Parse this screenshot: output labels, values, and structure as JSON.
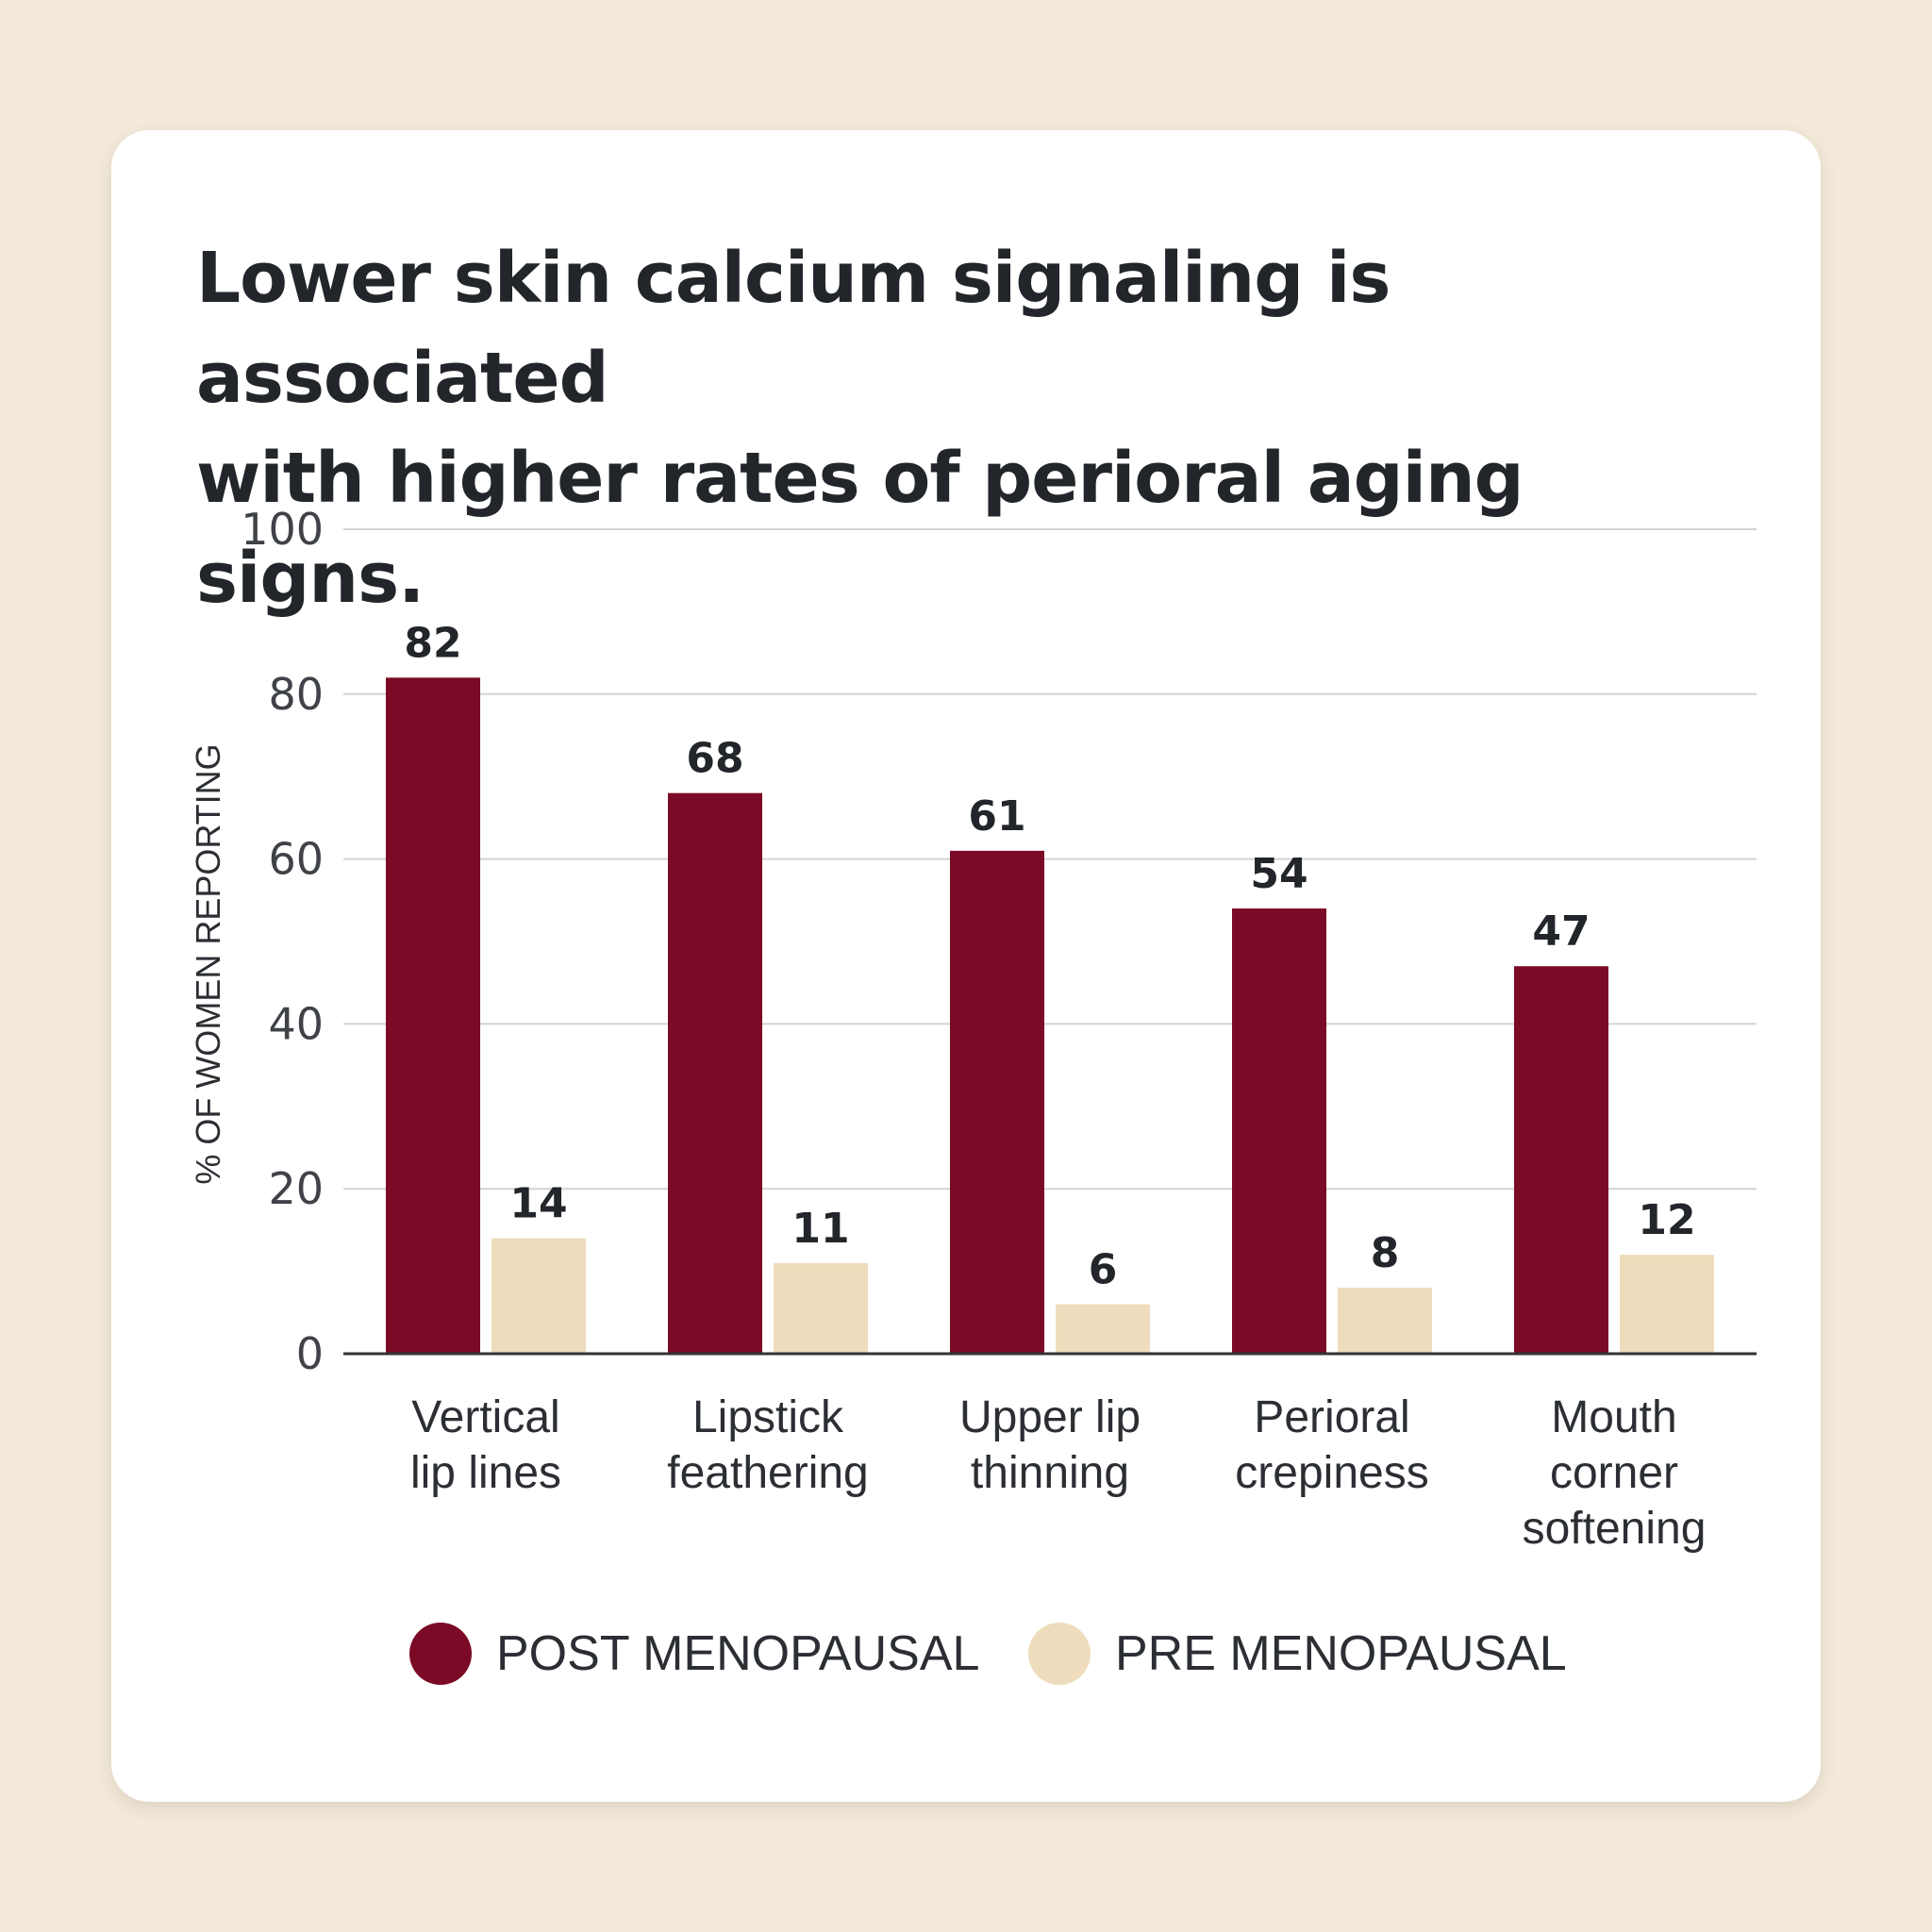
{
  "title": "Lower skin calcium signaling is associated\nwith higher rates of perioral aging signs.",
  "colors": {
    "post": "#7b0a26",
    "pre": "#eedcbc",
    "background": "#f3eadb",
    "card": "#ffffff",
    "grid": "#d3d3d3",
    "axis": "#333333"
  },
  "legend": {
    "post_label": "POST MENOPAUSAL",
    "pre_label": "PRE MENOPAUSAL"
  },
  "chart_data": {
    "type": "bar",
    "title": "Lower skin calcium signaling is associated with higher rates of perioral aging signs.",
    "xlabel": "",
    "ylabel": "% OF WOMEN REPORTING",
    "ylim": [
      0,
      100
    ],
    "yticks": [
      0,
      20,
      40,
      60,
      80,
      100
    ],
    "grid": true,
    "legend_position": "bottom",
    "categories": [
      "Vertical\nlip lines",
      "Lipstick\nfeathering",
      "Upper lip\nthinning",
      "Perioral\ncrepiness",
      "Mouth\ncorner\nsoftening"
    ],
    "series": [
      {
        "name": "POST MENOPAUSAL",
        "values": [
          82,
          68,
          61,
          54,
          47
        ]
      },
      {
        "name": "PRE MENOPAUSAL",
        "values": [
          14,
          11,
          6,
          8,
          12
        ]
      }
    ],
    "data_labels": true
  }
}
